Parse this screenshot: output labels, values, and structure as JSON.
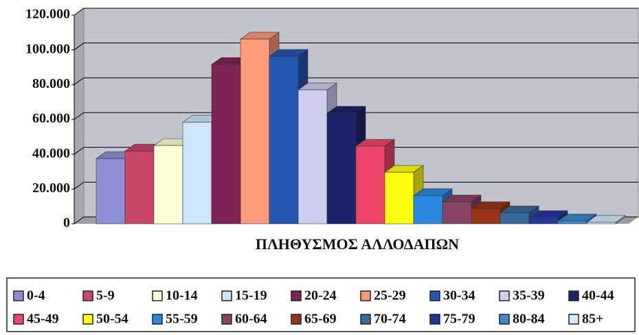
{
  "chart_data": {
    "type": "bar3d",
    "categories": [
      "ΠΛΗΘΥΣΜΟΣ ΑΛΛΟΔΑΠΩΝ"
    ],
    "series": [
      {
        "name": "0-4",
        "color": "#8f8fd6",
        "values": [
          37500
        ]
      },
      {
        "name": "5-9",
        "color": "#c9486a",
        "values": [
          41800
        ]
      },
      {
        "name": "10-14",
        "color": "#ffffd8",
        "values": [
          45000
        ]
      },
      {
        "name": "15-19",
        "color": "#cde6ff",
        "values": [
          58400
        ]
      },
      {
        "name": "20-24",
        "color": "#7f2452",
        "values": [
          91600
        ]
      },
      {
        "name": "25-29",
        "color": "#ff9a7a",
        "values": [
          106200
        ]
      },
      {
        "name": "30-34",
        "color": "#2458b0",
        "values": [
          96300
        ]
      },
      {
        "name": "35-39",
        "color": "#cfcdee",
        "values": [
          77000
        ]
      },
      {
        "name": "40-44",
        "color": "#1b2468",
        "values": [
          63600
        ]
      },
      {
        "name": "45-49",
        "color": "#ee4668",
        "values": [
          44600
        ]
      },
      {
        "name": "50-54",
        "color": "#ffff10",
        "values": [
          29600
        ]
      },
      {
        "name": "55-59",
        "color": "#2b8ae0",
        "values": [
          16200
        ]
      },
      {
        "name": "60-64",
        "color": "#884468",
        "values": [
          12600
        ]
      },
      {
        "name": "65-69",
        "color": "#993414",
        "values": [
          8700
        ]
      },
      {
        "name": "70-74",
        "color": "#3a6a9c",
        "values": [
          6300
        ]
      },
      {
        "name": "75-79",
        "color": "#24379c",
        "values": [
          3600
        ]
      },
      {
        "name": "80-84",
        "color": "#3a8acc",
        "values": [
          1600
        ]
      },
      {
        "name": "85+",
        "color": "#d0ecff",
        "values": [
          800
        ]
      }
    ],
    "ylim": [
      0,
      120000
    ],
    "yticks": [
      0,
      {
        "value": 20000,
        "label": "20.000"
      },
      {
        "value": 40000,
        "label": "40.000"
      },
      {
        "value": 60000,
        "label": "60.000"
      },
      {
        "value": 80000,
        "label": "80.000"
      },
      {
        "value": 100000,
        "label": "100.000"
      },
      {
        "value": 120000,
        "label": "120.000"
      }
    ],
    "grid": true,
    "legend": "bottom"
  }
}
